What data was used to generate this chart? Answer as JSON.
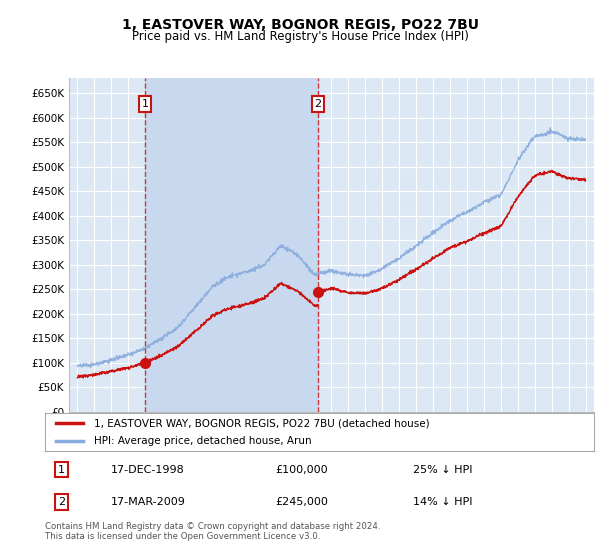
{
  "title": "1, EASTOVER WAY, BOGNOR REGIS, PO22 7BU",
  "subtitle": "Price paid vs. HM Land Registry's House Price Index (HPI)",
  "plot_bg_color": "#dce9f5",
  "shade_color": "#c8d8ee",
  "grid_color": "#ffffff",
  "ylim": [
    0,
    680000
  ],
  "ytick_vals": [
    0,
    50000,
    100000,
    150000,
    200000,
    250000,
    300000,
    350000,
    400000,
    450000,
    500000,
    550000,
    600000,
    650000
  ],
  "ytick_labels": [
    "£0",
    "£50K",
    "£100K",
    "£150K",
    "£200K",
    "£250K",
    "£300K",
    "£350K",
    "£400K",
    "£450K",
    "£500K",
    "£550K",
    "£600K",
    "£650K"
  ],
  "xlim": [
    1994.5,
    2025.5
  ],
  "xtick_vals": [
    1995,
    1996,
    1997,
    1998,
    1999,
    2000,
    2001,
    2002,
    2003,
    2004,
    2005,
    2006,
    2007,
    2008,
    2009,
    2010,
    2011,
    2012,
    2013,
    2014,
    2015,
    2016,
    2017,
    2018,
    2019,
    2020,
    2021,
    2022,
    2023,
    2024,
    2025
  ],
  "legend_entries": [
    "1, EASTOVER WAY, BOGNOR REGIS, PO22 7BU (detached house)",
    "HPI: Average price, detached house, Arun"
  ],
  "legend_colors": [
    "#cc1111",
    "#88aadd"
  ],
  "sale1_t": 1999.0,
  "sale1_price": 100000,
  "sale2_t": 2009.21,
  "sale2_price": 245000,
  "vline_color": "#cc1111",
  "hpi_color": "#88aadd",
  "sale_color": "#cc1111",
  "annotation_box_color": "#cc1111",
  "footer": "Contains HM Land Registry data © Crown copyright and database right 2024.\nThis data is licensed under the Open Government Licence v3.0.",
  "table_row1": [
    "1",
    "17-DEC-1998",
    "£100,000",
    "25% ↓ HPI"
  ],
  "table_row2": [
    "2",
    "17-MAR-2009",
    "£245,000",
    "14% ↓ HPI"
  ]
}
